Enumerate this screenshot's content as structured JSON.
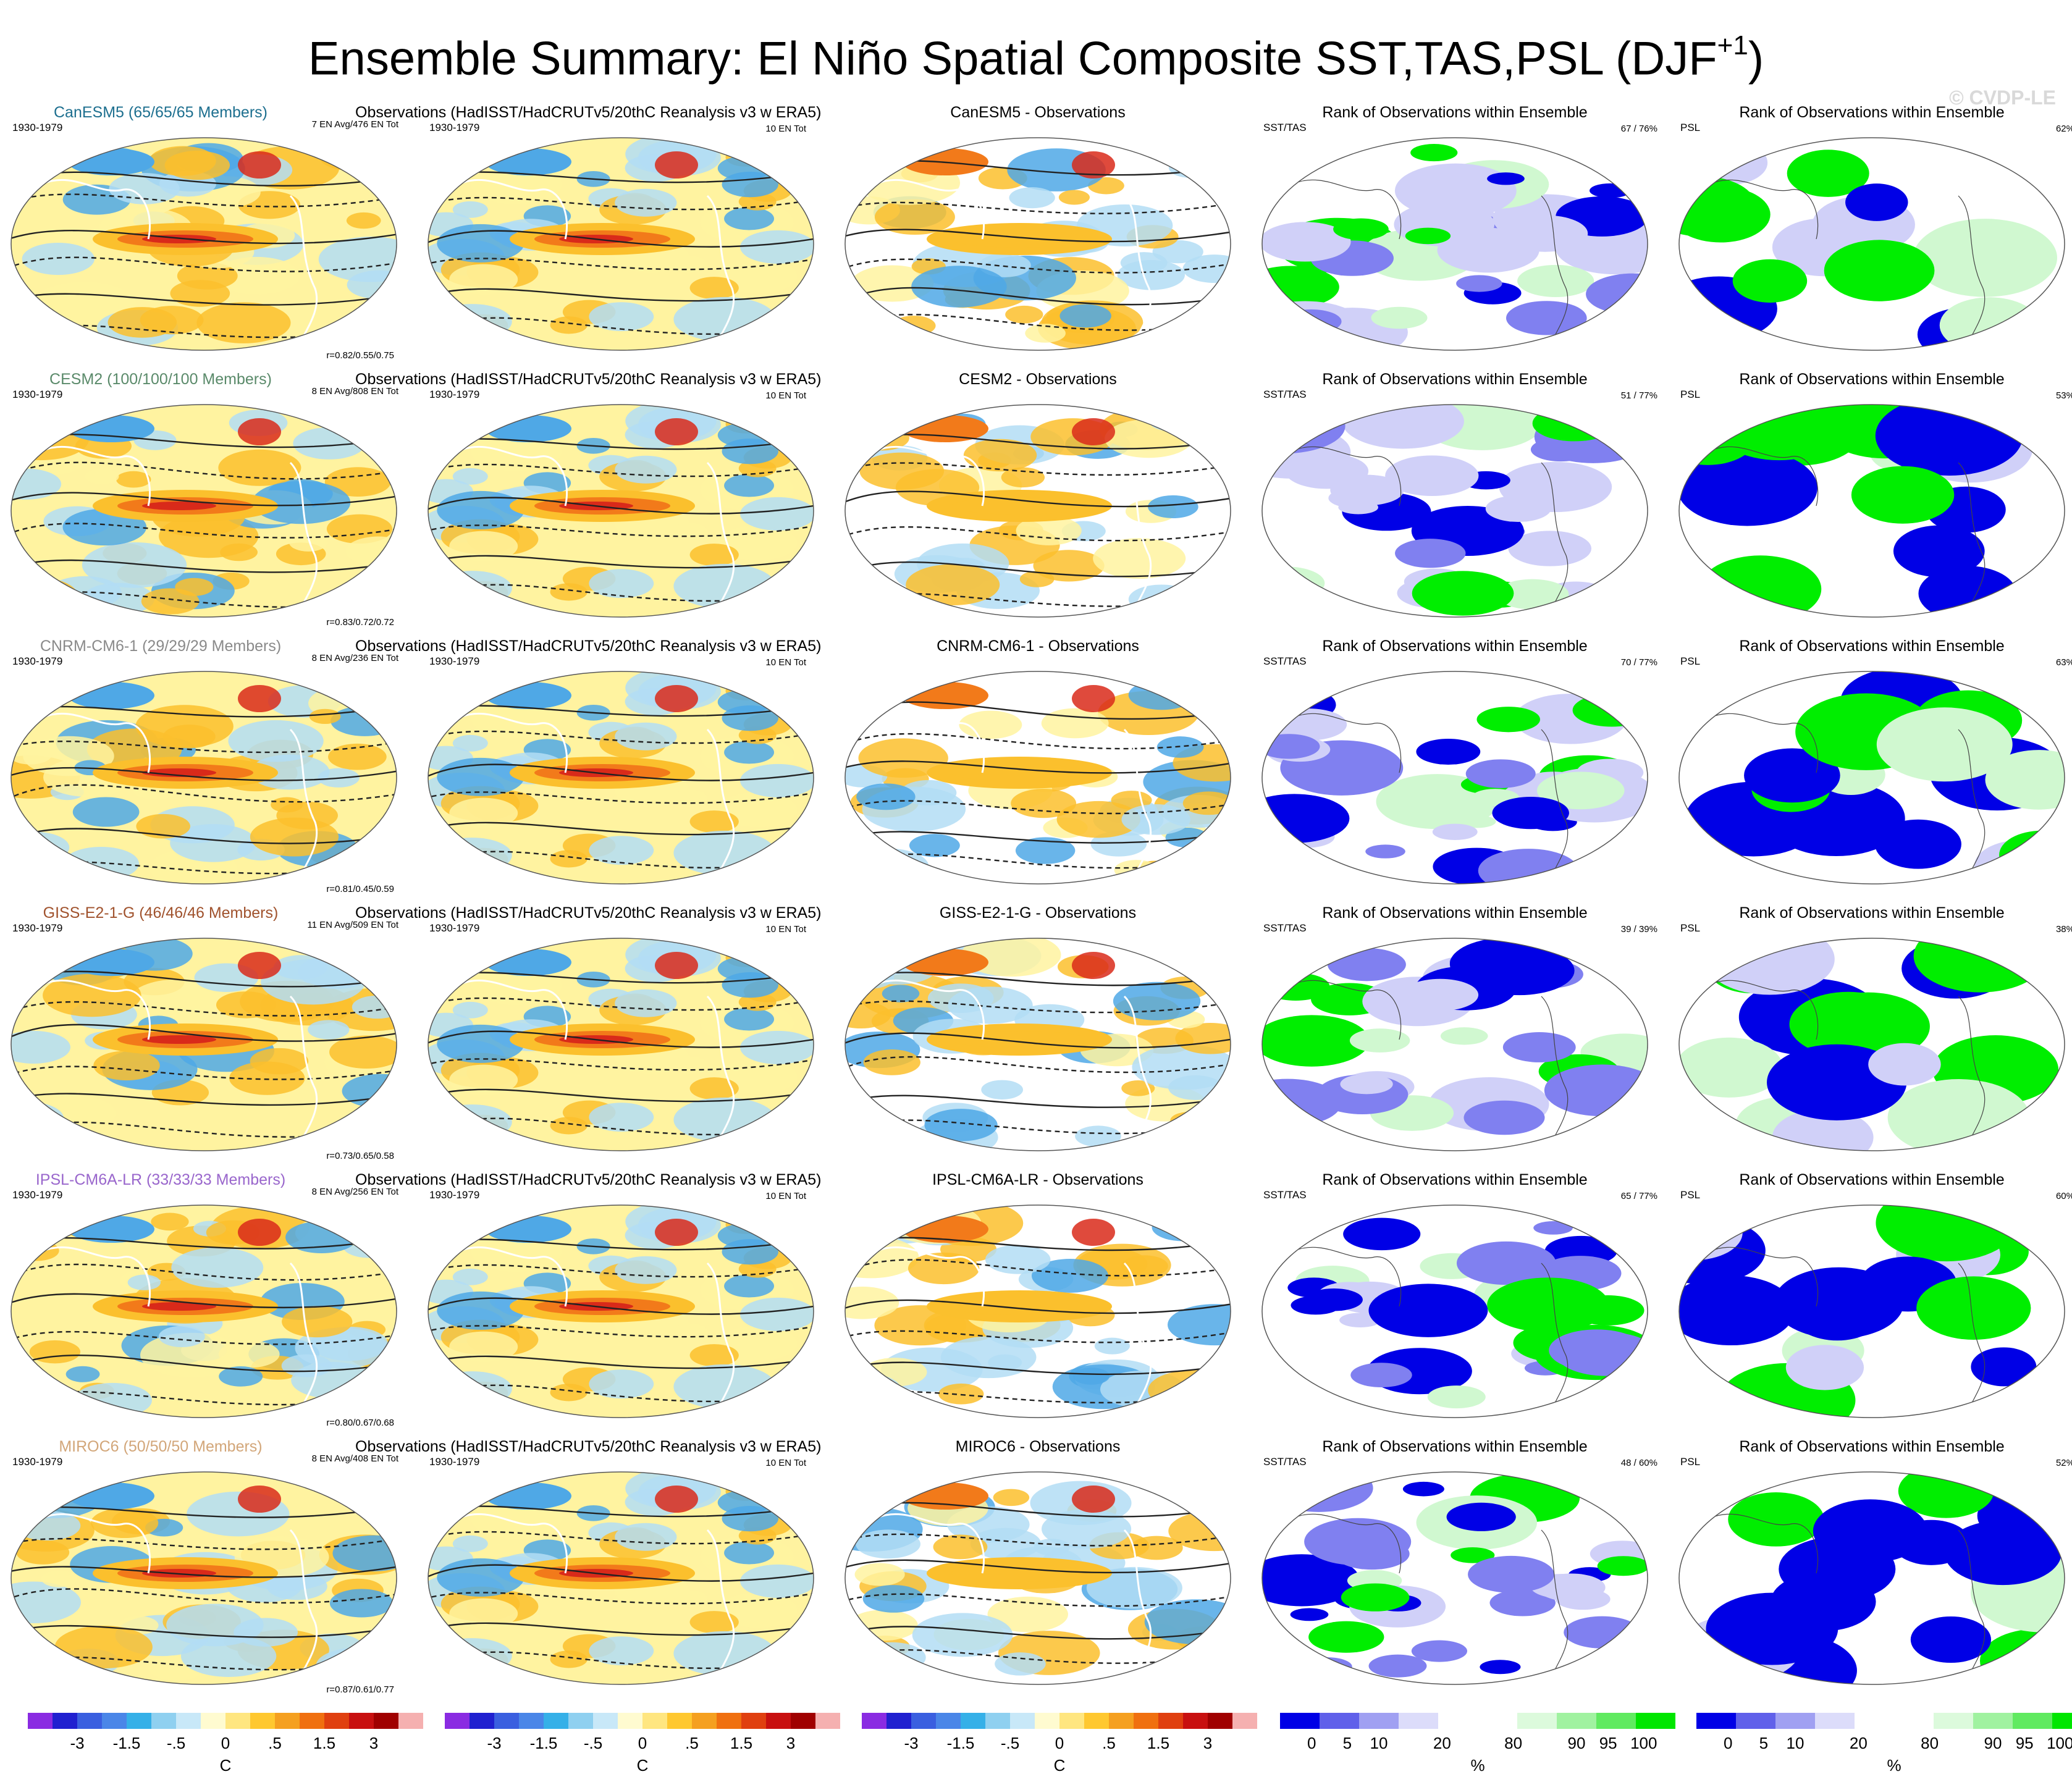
{
  "title": "Ensemble Summary: El Niño Spatial Composite SST,TAS,PSL (DJF",
  "title_sup": "+1",
  "title_end": ")",
  "watermark": "© CVDP-LE",
  "colors": {
    "warm_strong": "#d92a1a",
    "warm_mid": "#f27a1a",
    "warm_light": "#fbc02d",
    "warm_pale": "#fff3a0",
    "cool_light": "#b3ddf5",
    "cool_mid": "#4fa8e6",
    "cool_strong": "#2c5fd6",
    "rank_low": "#0000e6",
    "rank_low2": "#8080f0",
    "rank_low3": "#d0d0f8",
    "rank_high": "#00ee00",
    "rank_high2": "#80f080",
    "rank_high3": "#d0f8d0"
  },
  "chart_data": {
    "type": "heatmap",
    "title": "Ensemble Summary: El Niño Spatial Composite SST,TAS,PSL (DJF+1)",
    "period": "1930-1979",
    "rows": [
      {
        "model": "CanESM5",
        "model_title": "CanESM5 (65/65/65 Members)",
        "model_color": "#1d6f8f",
        "en_avg": "7 EN Avg/476 EN Tot",
        "corr": "r=0.82/0.55/0.75",
        "diff_title": "CanESM5 - Observations",
        "sst_rank": "67 /  76%",
        "psl_rank": "62%"
      },
      {
        "model": "CESM2",
        "model_title": "CESM2 (100/100/100 Members)",
        "model_color": "#5a8a6a",
        "en_avg": "8 EN Avg/808 EN Tot",
        "corr": "r=0.83/0.72/0.72",
        "diff_title": "CESM2 - Observations",
        "sst_rank": "51 /  77%",
        "psl_rank": "53%"
      },
      {
        "model": "CNRM-CM6-1",
        "model_title": "CNRM-CM6-1 (29/29/29 Members)",
        "model_color": "#8a8a8a",
        "en_avg": "8 EN Avg/236 EN Tot",
        "corr": "r=0.81/0.45/0.59",
        "diff_title": "CNRM-CM6-1 - Observations",
        "sst_rank": "70 /  77%",
        "psl_rank": "63%"
      },
      {
        "model": "GISS-E2-1-G",
        "model_title": "GISS-E2-1-G (46/46/46 Members)",
        "model_color": "#a0522d",
        "en_avg": "11 EN Avg/509 EN Tot",
        "corr": "r=0.73/0.65/0.58",
        "diff_title": "GISS-E2-1-G - Observations",
        "sst_rank": "39 /  39%",
        "psl_rank": "38%"
      },
      {
        "model": "IPSL-CM6A-LR",
        "model_title": "IPSL-CM6A-LR (33/33/33 Members)",
        "model_color": "#9966cc",
        "en_avg": "8 EN Avg/256 EN Tot",
        "corr": "r=0.80/0.67/0.68",
        "diff_title": "IPSL-CM6A-LR - Observations",
        "sst_rank": "65 /  77%",
        "psl_rank": "60%"
      },
      {
        "model": "MIROC6",
        "model_title": "MIROC6 (50/50/50 Members)",
        "model_color": "#d2a679",
        "en_avg": "8 EN Avg/408 EN Tot",
        "corr": "r=0.87/0.61/0.77",
        "diff_title": "MIROC6 - Observations",
        "sst_rank": "48 /  60%",
        "psl_rank": "52%"
      }
    ],
    "obs_title": "Observations (HadISST/HadCRUTv5/20thC Reanalysis v3 w ERA5)",
    "obs_count": "10 EN Tot",
    "rank_title": "Rank of Observations within Ensemble",
    "sst_label": "SST/TAS",
    "psl_label": "PSL",
    "temp_colorbar": {
      "colors": [
        "#8a2be2",
        "#2020d0",
        "#3a5fe0",
        "#4a86e8",
        "#35b0e8",
        "#8fd0f0",
        "#c8e8f8",
        "#fffbd0",
        "#ffe680",
        "#ffc830",
        "#f5a020",
        "#f07010",
        "#e04010",
        "#c81010",
        "#a00000",
        "#f5b0b0"
      ],
      "ticks": [
        "-3",
        "-1.5",
        "-.5",
        "0",
        ".5",
        "1.5",
        "3"
      ],
      "tick_pos": [
        0.125,
        0.25,
        0.375,
        0.5,
        0.625,
        0.75,
        0.875
      ],
      "unit": "C"
    },
    "rank_colorbar": {
      "colors": [
        "#0000e6",
        "#6060ea",
        "#a0a0f2",
        "#dcdcfa",
        "#ffffff",
        "#ffffff",
        "#dcfadc",
        "#a0f2a0",
        "#60ea60",
        "#00e600"
      ],
      "ticks": [
        "0",
        "5",
        "10",
        "20",
        "80",
        "90",
        "95",
        "100"
      ],
      "tick_pos": [
        0.08,
        0.17,
        0.25,
        0.41,
        0.59,
        0.75,
        0.83,
        0.92
      ],
      "unit": "%"
    }
  }
}
